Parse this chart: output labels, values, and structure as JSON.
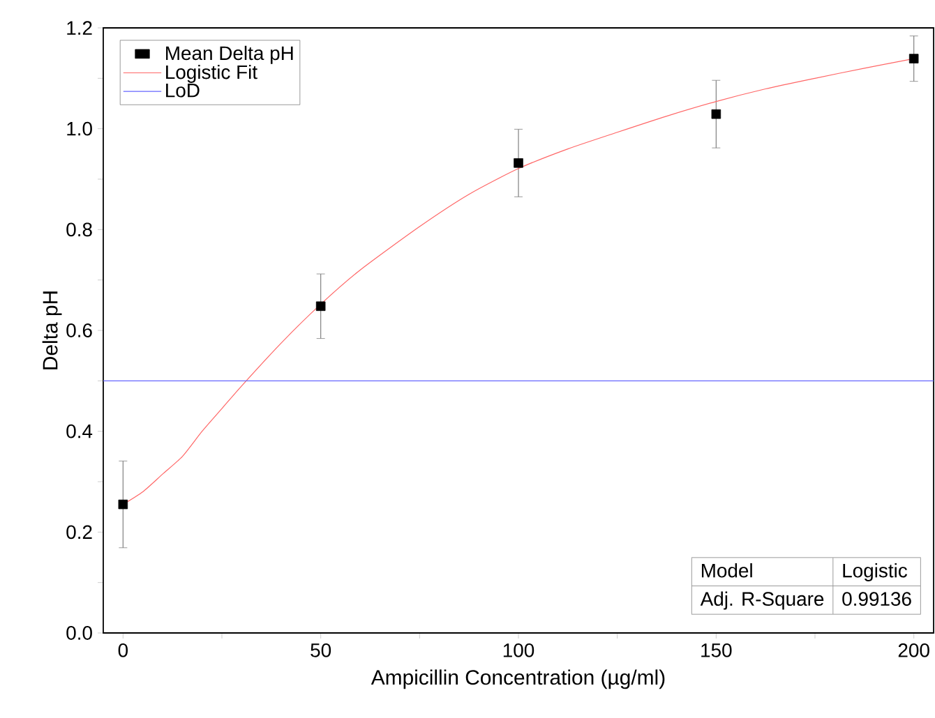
{
  "chart_data": {
    "type": "scatter",
    "xlabel": "Ampicillin Concentration (µg/ml)",
    "ylabel": "Delta pH",
    "xlim": [
      -5,
      205
    ],
    "ylim": [
      0,
      1.2
    ],
    "xticks": [
      0,
      {
        "value": 25,
        "label": null
      },
      50,
      {
        "value": 75,
        "label": null
      },
      100,
      {
        "value": 125,
        "label": null
      },
      150,
      {
        "value": 175,
        "label": null
      },
      200
    ],
    "yticks": [
      {
        "value": 0,
        "label": "0.0"
      },
      {
        "value": 0.1,
        "label": null
      },
      0.2,
      {
        "value": 0.3,
        "label": null
      },
      0.4,
      {
        "value": 0.5,
        "label": null
      },
      0.6,
      {
        "value": 0.7,
        "label": null
      },
      0.8,
      {
        "value": 0.9,
        "label": null
      },
      {
        "value": 1,
        "label": "1.0"
      },
      {
        "value": 1.1,
        "label": null
      },
      1.2
    ],
    "series": [
      {
        "name": "Mean Delta pH",
        "color": "#000000",
        "marker": "square",
        "x": [
          0,
          50,
          100,
          150,
          200
        ],
        "values": [
          0.255,
          0.648,
          0.932,
          1.029,
          1.139
        ],
        "errors": [
          0.086,
          0.064,
          0.067,
          0.067,
          0.045
        ]
      },
      {
        "name": "Logistic Fit",
        "type": "line",
        "color": "#ff6666",
        "x": [
          0,
          5,
          10,
          15,
          20,
          25,
          30,
          40,
          50,
          60,
          75,
          87.5,
          100,
          112.5,
          125,
          137.5,
          150,
          162.5,
          175,
          187.5,
          200
        ],
        "values": [
          0.255,
          0.28,
          0.315,
          0.35,
          0.4,
          0.445,
          0.49,
          0.575,
          0.652,
          0.72,
          0.806,
          0.87,
          0.921,
          0.96,
          0.993,
          1.025,
          1.054,
          1.079,
          1.1,
          1.12,
          1.139
        ]
      }
    ],
    "ref_lines": [
      {
        "axis": "y",
        "value": 0.5,
        "label": "LoD",
        "color": "#6666ff"
      }
    ],
    "annotations": [
      "Model",
      "Logistic",
      "Adj. R-Square",
      "0.99136"
    ],
    "legend": "top left",
    "grid": false
  }
}
